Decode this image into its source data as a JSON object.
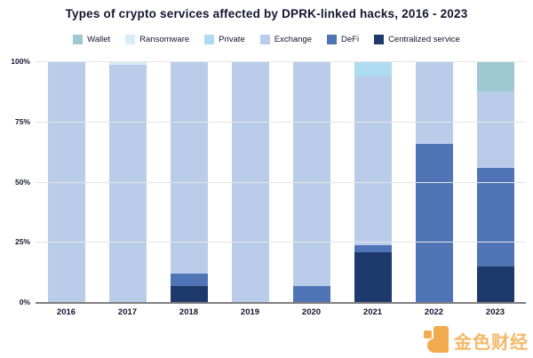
{
  "title": "Types of crypto services affected by DPRK-linked hacks, 2016 - 2023",
  "chart_data": {
    "type": "bar",
    "subtype": "stacked-percentage-column",
    "title": "Types of crypto services affected by DPRK-linked hacks, 2016 - 2023",
    "categories": [
      "2016",
      "2017",
      "2018",
      "2019",
      "2020",
      "2021",
      "2022",
      "2023"
    ],
    "series": [
      {
        "name": "Wallet",
        "color": "#9ec9d2",
        "values": [
          0,
          0,
          0,
          0,
          0,
          0,
          0,
          12
        ]
      },
      {
        "name": "Ransomware",
        "color": "#d9edf7",
        "values": [
          0,
          1,
          0,
          0,
          0,
          0,
          0,
          0
        ]
      },
      {
        "name": "Private",
        "color": "#addcf1",
        "values": [
          0,
          0,
          0,
          0,
          0,
          6,
          0,
          0
        ]
      },
      {
        "name": "Exchange",
        "color": "#b9cdea",
        "values": [
          100,
          99,
          88,
          100,
          93,
          70,
          34,
          32
        ]
      },
      {
        "name": "DeFi",
        "color": "#5075b6",
        "values": [
          0,
          0,
          5,
          0,
          7,
          3,
          66,
          41
        ]
      },
      {
        "name": "Centralized service",
        "color": "#1e3a6c",
        "values": [
          0,
          0,
          7,
          0,
          0,
          21,
          0,
          15
        ]
      }
    ],
    "stack_order_bottom_up": [
      "Centralized service",
      "DeFi",
      "Exchange",
      "Private",
      "Ransomware",
      "Wallet"
    ],
    "xlabel": "",
    "ylabel": "",
    "y_ticks": [
      "0%",
      "25%",
      "50%",
      "75%",
      "100%"
    ],
    "y_tick_values": [
      0,
      25,
      50,
      75,
      100
    ],
    "ylim": [
      0,
      100
    ],
    "grid": true,
    "legend_position": "top"
  },
  "colors": {
    "grid": "#e4e4e4",
    "axis": "#7f7f7f",
    "text": "#15152f",
    "watermark": "#f2a33c"
  },
  "watermark": {
    "text": "金色财经",
    "logo": "jinse-finance-logo"
  }
}
